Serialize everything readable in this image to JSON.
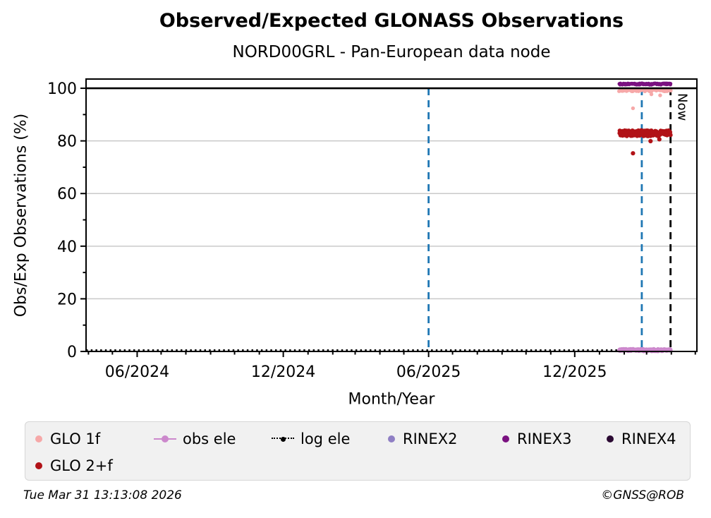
{
  "footer": {
    "timestamp": "Tue Mar 31 13:13:08 2026",
    "copyright": "©GNSS@ROB"
  },
  "chart_data": {
    "type": "scatter",
    "title": "Observed/Expected GLONASS Observations",
    "subtitle": "NORD00GRL - Pan-European data node",
    "xlabel": "Month/Year",
    "ylabel": "Obs/Exp Observations (%)",
    "x_domain": [
      "2024-03-29",
      "2026-05-03"
    ],
    "x_major_ticks": [
      {
        "date": "2024-06-01",
        "label": "06/2024"
      },
      {
        "date": "2024-12-01",
        "label": "12/2024"
      },
      {
        "date": "2025-06-01",
        "label": "06/2025"
      },
      {
        "date": "2025-12-01",
        "label": "12/2025"
      }
    ],
    "x_minor_ticks": "monthly",
    "ylim": [
      0,
      103.5
    ],
    "y_major_ticks": [
      0,
      20,
      40,
      60,
      80,
      100
    ],
    "y_minor_ticks": [
      10,
      30,
      50,
      70,
      90
    ],
    "grid": {
      "axis": "y",
      "color": "#c9c9c9"
    },
    "hline": {
      "y": 100,
      "color": "#000000"
    },
    "vlines": [
      {
        "date": "2025-06-01",
        "color": "#1f77b4",
        "style": "dashed"
      },
      {
        "date": "2026-02-23",
        "color": "#1f77b4",
        "style": "dashed"
      },
      {
        "date": "2026-03-31",
        "color": "#000000",
        "style": "dashed",
        "label": "Now"
      }
    ],
    "series": [
      {
        "name": "GLO 1f",
        "color": "#f6a8a8",
        "legend_marker": "dot",
        "marker_r": 2.7,
        "band": {
          "start": "2026-01-26",
          "end": "2026-03-31",
          "y_mean": 99.2,
          "y_jitter": 0.35,
          "points_per_day": 1.2
        },
        "outliers": [
          [
            "2026-02-12",
            92.4
          ],
          [
            "2026-03-07",
            97.7
          ],
          [
            "2026-03-18",
            97.3
          ]
        ]
      },
      {
        "name": "obs ele",
        "color": "#cc88cc",
        "legend_marker": "line-dot",
        "marker_r": 3.3,
        "band": {
          "start": "2026-01-26",
          "end": "2026-03-31",
          "y_mean": 0.5,
          "y_jitter": 0.3,
          "points_per_day": 1.5
        }
      },
      {
        "name": "log ele",
        "color": "#000000",
        "legend_marker": "dotted-line-dot",
        "dotted_line": {
          "start": "2024-03-29",
          "end": "2026-03-31",
          "y": 0.45
        }
      },
      {
        "name": "RINEX2",
        "color": "#8f7fc4",
        "legend_marker": "dot",
        "marker_r": 2.7
      },
      {
        "name": "RINEX3",
        "color": "#7a1180",
        "legend_marker": "dot",
        "marker_r": 2.7,
        "band": {
          "start": "2026-01-26",
          "end": "2026-03-31",
          "y_mean": 101.6,
          "y_jitter": 0.25,
          "points_per_day": 1.5
        }
      },
      {
        "name": "RINEX4",
        "color": "#2b0a33",
        "legend_marker": "dot",
        "marker_r": 2.7
      },
      {
        "name": "GLO 2+f",
        "color": "#b11217",
        "legend_marker": "dot",
        "marker_r": 3.1,
        "band": {
          "start": "2026-01-26",
          "end": "2026-03-31",
          "y_mean": 82.9,
          "y_jitter": 1.1,
          "points_per_day": 2
        },
        "outliers": [
          [
            "2026-02-12",
            75.3
          ],
          [
            "2026-03-06",
            79.9
          ],
          [
            "2026-03-17",
            80.6
          ]
        ]
      }
    ],
    "legend": {
      "position": "below",
      "rows": [
        [
          "GLO 1f",
          "obs ele",
          "log ele",
          "RINEX2",
          "RINEX3",
          "RINEX4"
        ],
        [
          "GLO 2+f"
        ]
      ]
    }
  }
}
